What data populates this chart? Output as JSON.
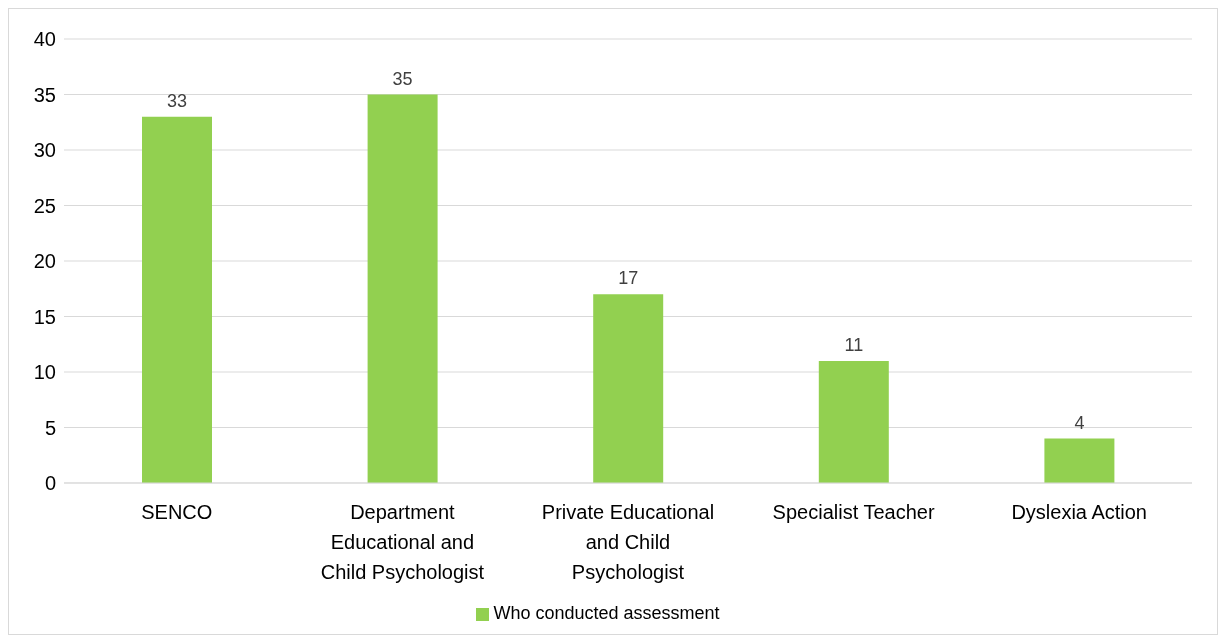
{
  "chart_data": {
    "type": "bar",
    "categories": [
      "SENCO",
      "Department Educational and Child Psychologist",
      "Private Educational and Child Psychologist",
      "Specialist Teacher",
      "Dyslexia Action"
    ],
    "series": [
      {
        "name": "Who conducted assessment",
        "color": "#92d050",
        "values": [
          33,
          35,
          17,
          11,
          4
        ]
      }
    ],
    "ylim": [
      0,
      40
    ],
    "yticks": [
      0,
      5,
      10,
      15,
      20,
      25,
      30,
      35,
      40
    ],
    "grid": "y",
    "legend": "bottom",
    "data_labels": true
  }
}
